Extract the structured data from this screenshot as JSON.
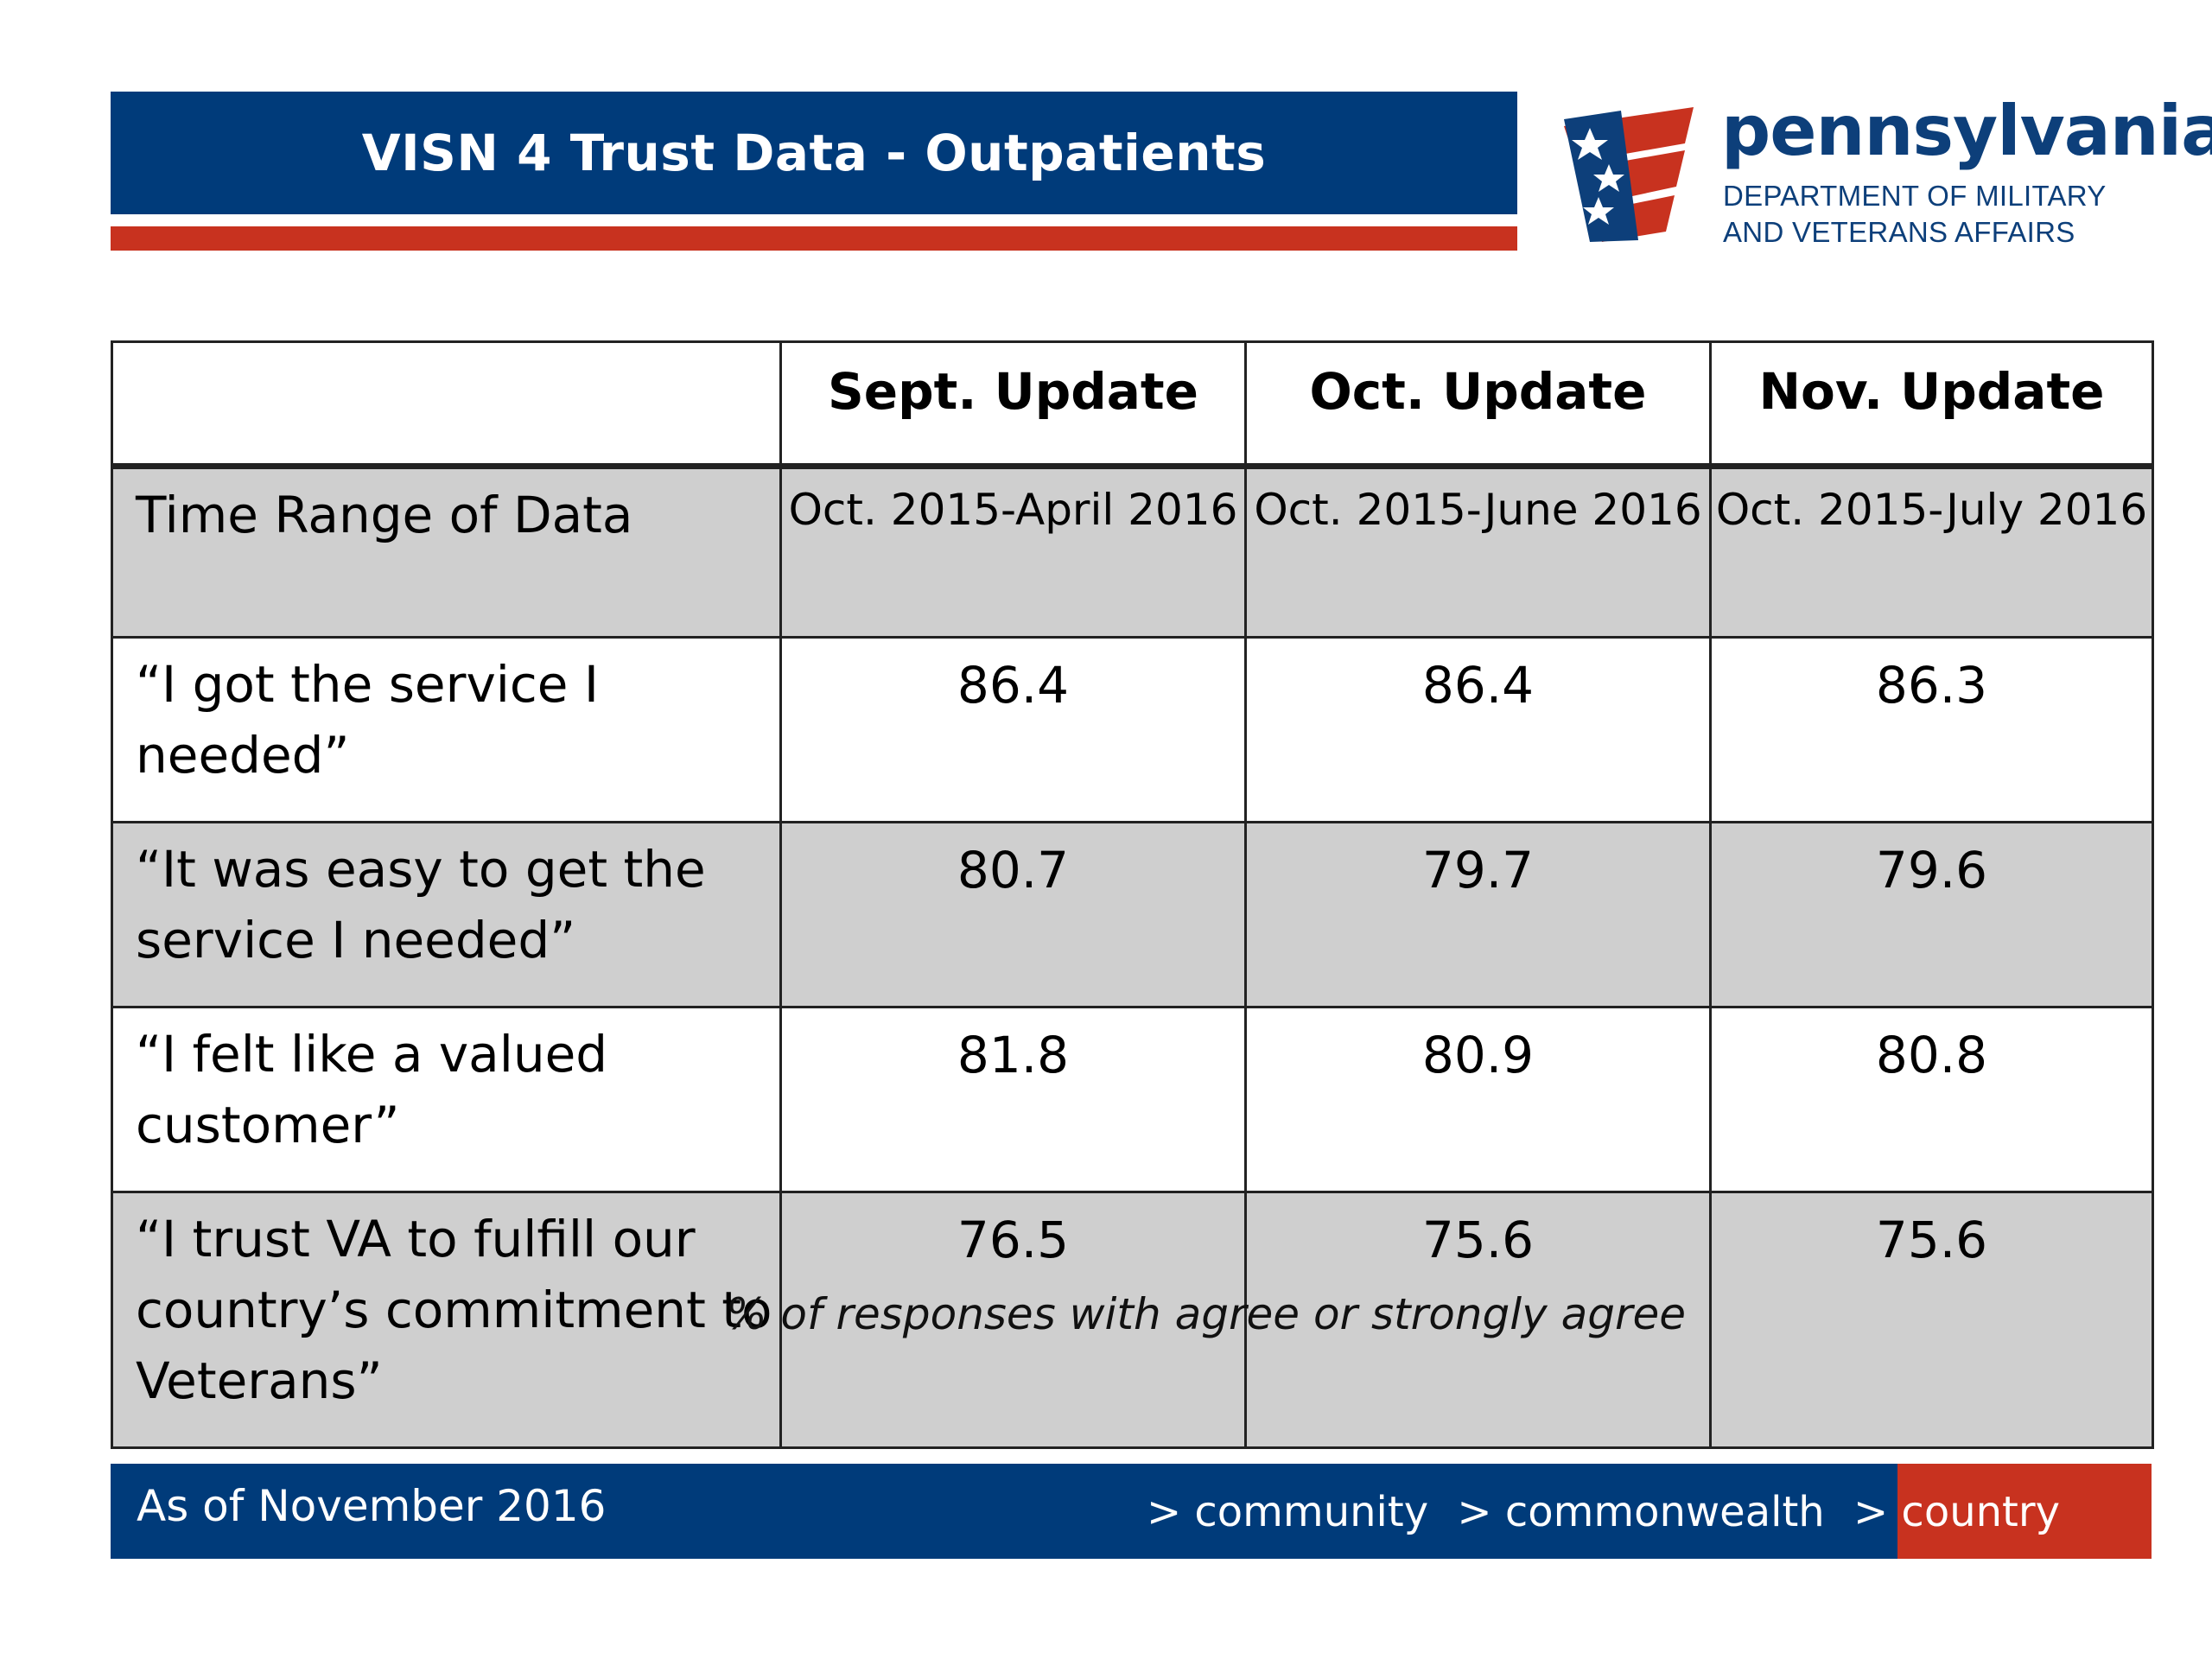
{
  "header": {
    "title": "VISN 4 Trust Data - Outpatients"
  },
  "logo": {
    "wordmark": "pennsylvania",
    "subtitle_line1": "DEPARTMENT OF MILITARY",
    "subtitle_line2": "AND VETERANS AFFAIRS",
    "colors": {
      "blue": "#0d3f7a",
      "red": "#c8321f"
    }
  },
  "table": {
    "columns": [
      "",
      "Sept. Update",
      "Oct. Update",
      "Nov. Update"
    ],
    "rows": [
      {
        "label": "Time Range of Data",
        "values": [
          "Oct. 2015-April 2016",
          "Oct. 2015-June 2016",
          "Oct. 2015-July 2016"
        ]
      },
      {
        "label": "“I got the service I needed”",
        "values": [
          "86.4",
          "86.4",
          "86.3"
        ]
      },
      {
        "label": "“It was easy to get the service I needed”",
        "values": [
          "80.7",
          "79.7",
          "79.6"
        ]
      },
      {
        "label": "“I felt like a valued customer”",
        "values": [
          "81.8",
          "80.9",
          "80.8"
        ]
      },
      {
        "label": "“I trust VA to fulfill our country’s commitment to Veterans”",
        "values": [
          "76.5",
          "75.6",
          "75.6"
        ]
      }
    ],
    "note": "% of responses with agree or strongly agree"
  },
  "footer": {
    "date": "As of November 2016",
    "tagline": [
      "> community",
      "> commonwealth",
      "> country"
    ]
  },
  "colors": {
    "navy": "#003b7a",
    "red": "#c8321f",
    "shade": "#cfcfcf"
  }
}
